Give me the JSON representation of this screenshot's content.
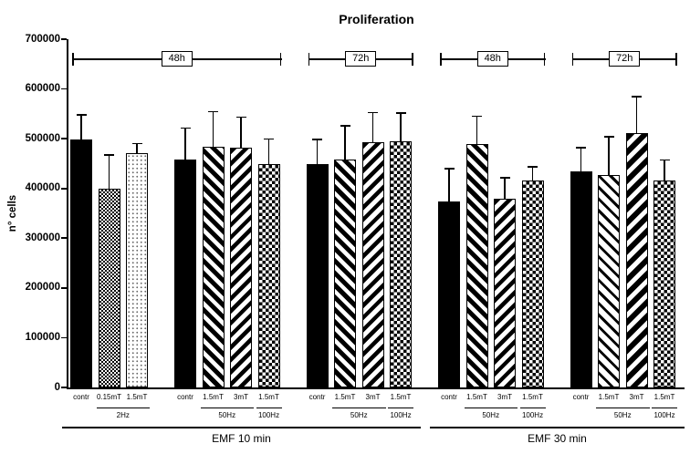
{
  "colors": {
    "ink": "#000000",
    "background": "#ffffff"
  },
  "chart_data": {
    "type": "bar",
    "title": "Proliferation",
    "xlabel": "",
    "ylabel": "n° cells",
    "ylim": [
      0,
      700000
    ],
    "ytick_interval": 100000,
    "yticks": [
      "0",
      "100000",
      "200000",
      "300000",
      "400000",
      "500000",
      "600000",
      "700000"
    ],
    "grid": false,
    "legend": null,
    "error_bars": "upper only, cap at top",
    "groups": [
      {
        "bars": [
          {
            "label": "contr",
            "pattern": "solid",
            "value": 498000,
            "upper": 546000
          },
          {
            "label": "0.15mT",
            "pattern": "fine-check",
            "value": 400000,
            "upper": 466000
          },
          {
            "label": "1.5mT",
            "pattern": "dots",
            "value": 471000,
            "upper": 489000
          }
        ],
        "freq_spans": [
          {
            "label": "2Hz",
            "bar_start": 1,
            "bar_end": 2
          }
        ]
      },
      {
        "bars": [
          {
            "label": "contr",
            "pattern": "solid",
            "value": 458000,
            "upper": 520000
          },
          {
            "label": "1.5mT",
            "pattern": "diag-down",
            "value": 484000,
            "upper": 553000
          },
          {
            "label": "3mT",
            "pattern": "diag-up",
            "value": 482000,
            "upper": 542000
          },
          {
            "label": "1.5mT",
            "pattern": "checker",
            "value": 449000,
            "upper": 498000
          }
        ],
        "freq_spans": [
          {
            "label": "50Hz",
            "bar_start": 1,
            "bar_end": 2
          },
          {
            "label": "100Hz",
            "bar_start": 3,
            "bar_end": 3
          }
        ]
      },
      {
        "bars": [
          {
            "label": "contr",
            "pattern": "solid",
            "value": 449000,
            "upper": 497000
          },
          {
            "label": "1.5mT",
            "pattern": "diag-down",
            "value": 458000,
            "upper": 524000
          },
          {
            "label": "3mT",
            "pattern": "diag-up",
            "value": 493000,
            "upper": 551000
          },
          {
            "label": "1.5mT",
            "pattern": "checker",
            "value": 494000,
            "upper": 550000
          }
        ],
        "freq_spans": [
          {
            "label": "50Hz",
            "bar_start": 1,
            "bar_end": 2
          },
          {
            "label": "100Hz",
            "bar_start": 3,
            "bar_end": 3
          }
        ]
      },
      {
        "bars": [
          {
            "label": "contr",
            "pattern": "solid",
            "value": 374000,
            "upper": 438000
          },
          {
            "label": "1.5mT",
            "pattern": "diag-down",
            "value": 489000,
            "upper": 544000
          },
          {
            "label": "3mT",
            "pattern": "diag-up",
            "value": 379000,
            "upper": 420000
          },
          {
            "label": "1.5mT",
            "pattern": "checker",
            "value": 416000,
            "upper": 442000
          }
        ],
        "freq_spans": [
          {
            "label": "50Hz",
            "bar_start": 1,
            "bar_end": 2
          },
          {
            "label": "100Hz",
            "bar_start": 3,
            "bar_end": 3
          }
        ]
      },
      {
        "bars": [
          {
            "label": "contr",
            "pattern": "solid",
            "value": 434000,
            "upper": 480000
          },
          {
            "label": "1.5mT",
            "pattern": "diag-down-thin",
            "value": 427000,
            "upper": 502000
          },
          {
            "label": "3mT",
            "pattern": "diag-up-heavy",
            "value": 511000,
            "upper": 583000
          },
          {
            "label": "1.5mT",
            "pattern": "checker",
            "value": 416000,
            "upper": 456000
          }
        ],
        "freq_spans": [
          {
            "label": "50Hz",
            "bar_start": 1,
            "bar_end": 2
          },
          {
            "label": "100Hz",
            "bar_start": 3,
            "bar_end": 3
          }
        ]
      }
    ],
    "brackets": [
      {
        "label": "48h",
        "group_start": 0,
        "group_end": 1
      },
      {
        "label": "72h",
        "group_start": 2,
        "group_end": 2
      },
      {
        "label": "48h",
        "group_start": 3,
        "group_end": 3
      },
      {
        "label": "72h",
        "group_start": 4,
        "group_end": 4
      }
    ],
    "bottom_spans": [
      {
        "label": "EMF 10 min",
        "group_start": 0,
        "group_end": 2
      },
      {
        "label": "EMF 30 min",
        "group_start": 3,
        "group_end": 4
      }
    ]
  }
}
